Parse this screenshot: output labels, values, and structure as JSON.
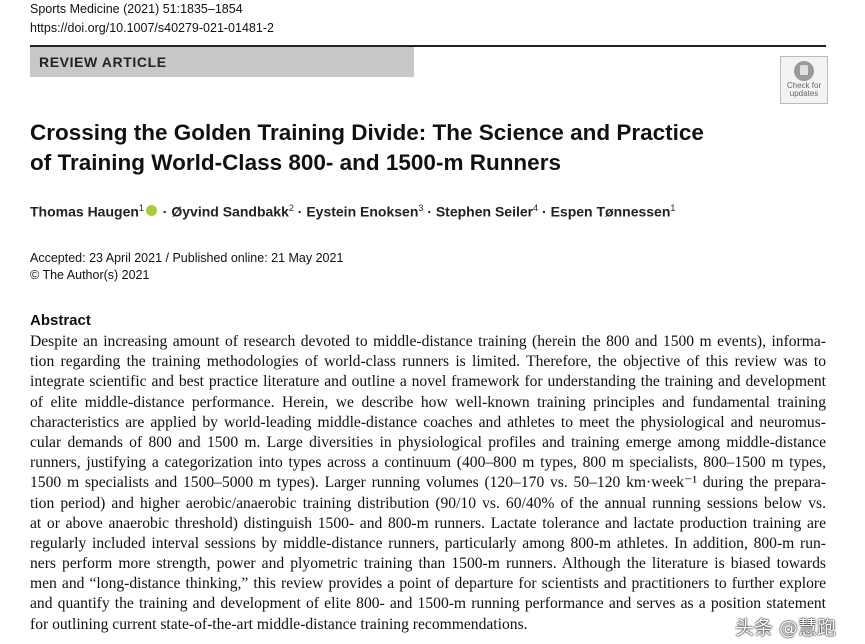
{
  "header": {
    "journal": "Sports Medicine (2021) 51:1835–1854",
    "doi": "https://doi.org/10.1007/s40279-021-01481-2",
    "article_type": "REVIEW ARTICLE",
    "check_updates": [
      "Check for",
      "updates"
    ]
  },
  "title": [
    "Crossing the Golden Training Divide: The Science and Practice",
    "of Training World-Class 800- and 1500-m Runners"
  ],
  "authors": [
    {
      "name": "Thomas Haugen",
      "aff": "1"
    },
    {
      "name": "Øyvind Sandbakk",
      "aff": "2"
    },
    {
      "name": "Eystein Enoksen",
      "aff": "3"
    },
    {
      "name": "Stephen Seiler",
      "aff": "4"
    },
    {
      "name": "Espen Tønnessen",
      "aff": "1"
    }
  ],
  "dates": "Accepted: 23 April 2021 / Published online: 21 May 2021",
  "copyright": "© The Author(s) 2021",
  "abstract": {
    "heading": "Abstract",
    "lines": [
      "Despite an increasing amount of research devoted to middle-distance training (herein the 800 and 1500 m events), informa-",
      "tion regarding the training methodologies of world-class runners is limited. Therefore, the objective of this review was to",
      "integrate scientific and best practice literature and outline a novel framework for understanding the training and development",
      "of elite middle-distance performance. Herein, we describe how well-known training principles and fundamental training",
      "characteristics are applied by world-leading middle-distance coaches and athletes to meet the physiological and neuromus-",
      "cular demands of 800 and 1500 m. Large diversities in physiological profiles and training emerge among middle-distance",
      "runners, justifying a categorization into types across a continuum (400–800 m types, 800 m specialists, 800–1500 m types,",
      "1500 m specialists and 1500–5000 m types). Larger running volumes (120–170 vs. 50–120 km·week⁻¹ during the prepara-",
      "tion period) and higher aerobic/anaerobic training distribution (90/10 vs. 60/40% of the annual running sessions below vs.",
      "at or above anaerobic threshold) distinguish 1500- and 800-m runners. Lactate tolerance and lactate production training are",
      "regularly included interval sessions by middle-distance runners, particularly among 800-m athletes. In addition, 800-m run-",
      "ners perform more strength, power and plyometric training than 1500-m runners. Although the literature is biased towards",
      "men and “long-distance thinking,” this review provides a point of departure for scientists and practitioners to further explore",
      "and quantify the training and development of elite 800- and 1500-m running performance and serves as a position statement",
      "for outlining current state-of-the-art middle-distance training recommendations."
    ]
  },
  "watermark": "头条 @慧跑"
}
